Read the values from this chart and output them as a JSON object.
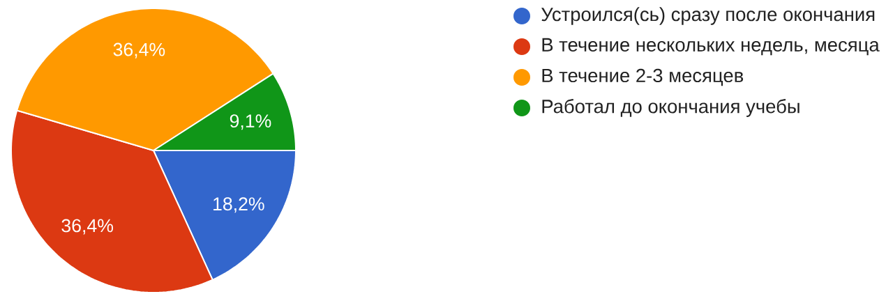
{
  "chart_data": {
    "type": "pie",
    "categories": [
      "Устроился(сь) сразу после окончания",
      "В течение нескольких недель, месяца",
      "В течение 2-3 месяцев",
      "Работал до окончания учебы"
    ],
    "values": [
      18.2,
      36.4,
      36.4,
      9.1
    ],
    "colors": [
      "#3366cc",
      "#dc3912",
      "#ff9900",
      "#109618"
    ],
    "value_labels": [
      "18,2%",
      "36,4%",
      "36,4%",
      "9,1%"
    ],
    "legend": "top right"
  }
}
